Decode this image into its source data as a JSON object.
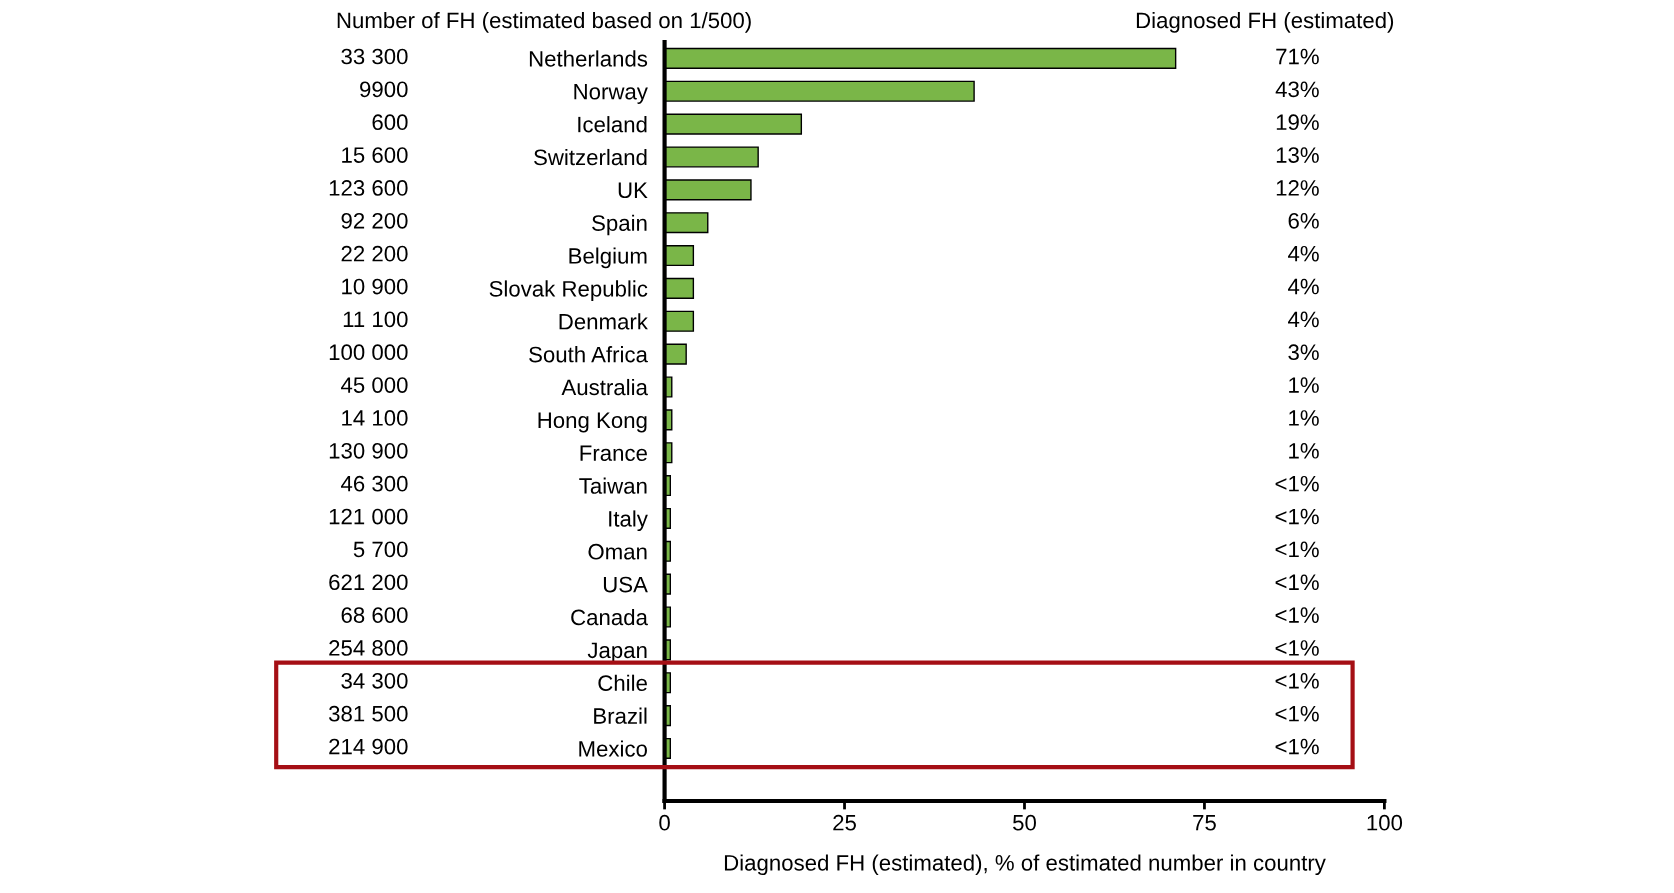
{
  "chart_data": {
    "type": "bar",
    "orientation": "horizontal",
    "xlabel": "Diagnosed FH (estimated), % of estimated number in country",
    "categories": [
      "Netherlands",
      "Norway",
      "Iceland",
      "Switzerland",
      "UK",
      "Spain",
      "Belgium",
      "Slovak Republic",
      "Denmark",
      "South Africa",
      "Australia",
      "Hong Kong",
      "France",
      "Taiwan",
      "Italy",
      "Oman",
      "USA",
      "Canada",
      "Japan",
      "Chile",
      "Brazil",
      "Mexico"
    ],
    "values": [
      71,
      43,
      19,
      13,
      12,
      6,
      4,
      4,
      4,
      3,
      1,
      1,
      1,
      0.8,
      0.8,
      0.8,
      0.8,
      0.8,
      0.8,
      0.8,
      0.8,
      0.8
    ],
    "value_labels": [
      "71%",
      "43%",
      "19%",
      "13%",
      "12%",
      "6%",
      "4%",
      "4%",
      "4%",
      "3%",
      "1%",
      "1%",
      "1%",
      "<1%",
      "<1%",
      "<1%",
      "<1%",
      "<1%",
      "<1%",
      "<1%",
      "<1%",
      "<1%"
    ],
    "color": "#7ab648",
    "xlim": [
      0,
      100
    ],
    "xticks": [
      0,
      25,
      50,
      75,
      100
    ],
    "grid": false,
    "legend": false,
    "annotations": [
      "Number of FH (estimated based on 1/500)",
      "Diagnosed FH (estimated)",
      "33 300",
      "9900",
      "600",
      "15 600",
      "123 600",
      "92 200",
      "22 200",
      "10 900",
      "11 100",
      "100 000",
      "45 000",
      "14 100",
      "130 900",
      "46 300",
      "121 000",
      "5 700",
      "621 200",
      "68 600",
      "254 800",
      "34 300",
      "381 500",
      "214 900"
    ]
  }
}
